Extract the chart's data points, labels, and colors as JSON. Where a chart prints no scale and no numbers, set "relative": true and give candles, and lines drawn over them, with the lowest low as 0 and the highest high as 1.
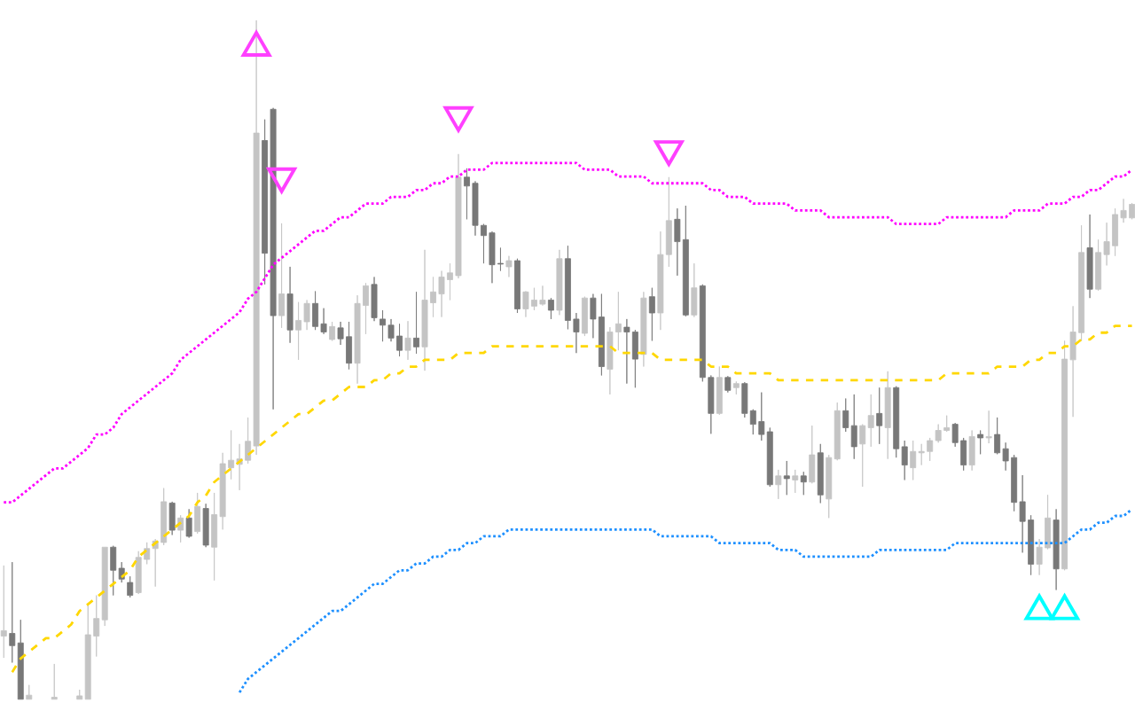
{
  "chart_data": {
    "type": "candlestick",
    "relative": true,
    "categories": [
      null,
      null,
      null,
      null,
      null,
      null,
      null,
      null,
      null,
      null,
      null,
      null,
      null,
      null,
      null,
      null,
      null,
      null,
      null,
      null,
      null,
      null,
      null,
      null,
      null,
      null,
      null,
      null,
      null,
      null,
      null,
      null,
      null,
      null,
      null,
      null,
      null,
      null,
      null,
      null,
      null,
      null,
      null,
      null,
      null,
      null,
      null,
      null,
      null,
      null,
      null,
      null,
      null,
      null,
      null,
      null,
      null,
      null,
      null,
      null,
      null,
      null,
      null,
      null,
      null,
      null,
      null,
      null,
      null,
      null,
      null,
      null,
      null,
      null,
      null,
      null,
      null,
      null,
      null,
      null,
      null,
      null,
      null,
      null,
      null,
      null,
      null,
      null,
      null,
      null,
      null,
      null,
      null,
      null,
      null,
      null,
      null,
      null,
      null,
      null,
      null,
      null,
      null,
      null,
      null,
      null,
      null,
      null,
      null,
      null,
      null,
      null,
      null,
      null,
      null,
      null,
      null,
      null,
      null,
      null,
      null,
      null,
      null,
      null,
      null,
      null,
      null,
      null,
      null,
      null,
      null,
      null,
      null,
      null,
      null
    ],
    "ohlc": [
      [
        0.093,
        0.197,
        0.061,
        0.101
      ],
      [
        0.097,
        0.202,
        0.054,
        0.079
      ],
      [
        0.083,
        0.117,
        0,
        0
      ],
      [
        0,
        0.021,
        0,
        0.006
      ],
      null,
      null,
      [
        0,
        0.052,
        0,
        0.003
      ],
      null,
      null,
      [
        0,
        0.014,
        0,
        0.005
      ],
      [
        0,
        0.141,
        0,
        0.095
      ],
      [
        0.093,
        0.153,
        0.063,
        0.119
      ],
      [
        0.117,
        0.224,
        0.108,
        0.224
      ],
      [
        0.224,
        0.226,
        0.153,
        0.19
      ],
      [
        0.193,
        0.202,
        0.172,
        0.177
      ],
      [
        0.172,
        0.181,
        0.15,
        0.153
      ],
      [
        0.157,
        0.218,
        0.155,
        0.209
      ],
      [
        0.206,
        0.231,
        0.199,
        0.222
      ],
      [
        0.222,
        0.236,
        0.166,
        0.233
      ],
      [
        0.231,
        0.311,
        0.227,
        0.291
      ],
      [
        0.289,
        0.291,
        0.242,
        0.249
      ],
      [
        0.249,
        0.271,
        0.231,
        0.267
      ],
      [
        0.267,
        0.28,
        0.238,
        0.24
      ],
      [
        0.247,
        0.304,
        0.244,
        0.284
      ],
      [
        0.281,
        0.288,
        0.224,
        0.227
      ],
      [
        0.224,
        0.304,
        0.175,
        0.272
      ],
      [
        0.269,
        0.363,
        0.25,
        0.347
      ],
      [
        0.341,
        0.396,
        0.324,
        0.352
      ],
      [
        0.346,
        0.376,
        0.308,
        0.354
      ],
      [
        0.352,
        0.415,
        0.347,
        0.38
      ],
      [
        0.373,
        1,
        0.36,
        0.834
      ],
      [
        0.823,
        0.854,
        0.611,
        0.657
      ],
      [
        0.869,
        0.871,
        0.427,
        0.565
      ],
      [
        0.565,
        0.701,
        0.547,
        0.597
      ],
      [
        0.597,
        0.637,
        0.525,
        0.544
      ],
      [
        0.544,
        0.585,
        0.5,
        0.558
      ],
      [
        0.556,
        0.588,
        0.544,
        0.583
      ],
      [
        0.583,
        0.601,
        0.544,
        0.549
      ],
      [
        0.553,
        0.576,
        0.538,
        0.541
      ],
      [
        0.53,
        0.556,
        0.528,
        0.549
      ],
      [
        0.547,
        0.556,
        0.522,
        0.531
      ],
      [
        0.534,
        0.556,
        0.486,
        0.495
      ],
      [
        0.495,
        0.595,
        0.465,
        0.583
      ],
      [
        0.58,
        0.613,
        0.538,
        0.609
      ],
      [
        0.611,
        0.622,
        0.557,
        0.562
      ],
      [
        0.56,
        0.573,
        0.527,
        0.551
      ],
      [
        0.551,
        0.56,
        0.527,
        0.532
      ],
      [
        0.535,
        0.553,
        0.505,
        0.514
      ],
      [
        0.514,
        0.557,
        0.5,
        0.532
      ],
      [
        0.532,
        0.6,
        0.509,
        0.519
      ],
      [
        0.519,
        0.662,
        0.484,
        0.588
      ],
      [
        0.584,
        0.622,
        0.563,
        0.6
      ],
      [
        0.597,
        0.631,
        0.563,
        0.622
      ],
      [
        0.618,
        0.642,
        0.588,
        0.628
      ],
      [
        0.624,
        0.803,
        0.62,
        0.769
      ],
      [
        0.769,
        0.782,
        0.707,
        0.756
      ],
      [
        0.76,
        0.763,
        0.683,
        0.698
      ],
      [
        0.698,
        0.7,
        0.642,
        0.683
      ],
      [
        0.687,
        0.689,
        0.613,
        0.64
      ],
      [
        0.642,
        0.665,
        0.631,
        0.641
      ],
      [
        0.637,
        0.653,
        0.622,
        0.646
      ],
      [
        0.646,
        0.649,
        0.569,
        0.575
      ],
      [
        0.575,
        0.601,
        0.563,
        0.6
      ],
      [
        0.579,
        0.606,
        0.573,
        0.588
      ],
      [
        0.582,
        0.609,
        0.58,
        0.588
      ],
      [
        0.588,
        0.591,
        0.56,
        0.573
      ],
      [
        0.573,
        0.662,
        0.566,
        0.649
      ],
      [
        0.649,
        0.668,
        0.545,
        0.558
      ],
      [
        0.56,
        0.569,
        0.51,
        0.541
      ],
      [
        0.539,
        0.593,
        0.535,
        0.591
      ],
      [
        0.591,
        0.597,
        0.532,
        0.56
      ],
      [
        0.563,
        0.597,
        0.477,
        0.49
      ],
      [
        0.486,
        0.548,
        0.449,
        0.541
      ],
      [
        0.541,
        0.6,
        0.514,
        0.553
      ],
      [
        0.548,
        0.56,
        0.465,
        0.541
      ],
      [
        0.541,
        0.544,
        0.459,
        0.501
      ],
      [
        0.508,
        0.6,
        0.49,
        0.591
      ],
      [
        0.593,
        0.606,
        0.528,
        0.569
      ],
      [
        0.569,
        0.689,
        0.544,
        0.655
      ],
      [
        0.655,
        0.769,
        0.637,
        0.705
      ],
      [
        0.707,
        0.723,
        0.624,
        0.674
      ],
      [
        0.677,
        0.727,
        0.564,
        0.566
      ],
      [
        0.566,
        0.642,
        0.563,
        0.606
      ],
      [
        0.609,
        0.611,
        0.468,
        0.474
      ],
      [
        0.474,
        0.477,
        0.391,
        0.421
      ],
      [
        0.421,
        0.49,
        0.419,
        0.474
      ],
      [
        0.474,
        0.476,
        0.452,
        0.455
      ],
      [
        0.459,
        0.468,
        0.449,
        0.465
      ],
      [
        0.465,
        0.467,
        0.415,
        0.421
      ],
      [
        0.425,
        0.427,
        0.39,
        0.405
      ],
      [
        0.409,
        0.452,
        0.381,
        0.39
      ],
      [
        0.394,
        0.4,
        0.313,
        0.316
      ],
      [
        0.316,
        0.338,
        0.295,
        0.329
      ],
      [
        0.329,
        0.351,
        0.301,
        0.325
      ],
      [
        0.323,
        0.338,
        0.304,
        0.329
      ],
      [
        0.329,
        0.335,
        0.301,
        0.32
      ],
      [
        0.32,
        0.403,
        0.318,
        0.36
      ],
      [
        0.363,
        0.376,
        0.289,
        0.301
      ],
      [
        0.295,
        0.36,
        0.267,
        0.356
      ],
      [
        0.354,
        0.437,
        0.352,
        0.425
      ],
      [
        0.425,
        0.443,
        0.394,
        0.4
      ],
      [
        0.403,
        0.449,
        0.354,
        0.372
      ],
      [
        0.376,
        0.405,
        0.313,
        0.403
      ],
      [
        0.4,
        0.449,
        0.372,
        0.418
      ],
      [
        0.421,
        0.459,
        0.376,
        0.403
      ],
      [
        0.4,
        0.483,
        0.354,
        0.459
      ],
      [
        0.459,
        0.461,
        0.356,
        0.369
      ],
      [
        0.372,
        0.381,
        0.323,
        0.345
      ],
      [
        0.341,
        0.381,
        0.323,
        0.365
      ],
      [
        0.363,
        0.376,
        0.345,
        0.365
      ],
      [
        0.365,
        0.385,
        0.351,
        0.381
      ],
      [
        0.381,
        0.405,
        0.378,
        0.396
      ],
      [
        0.396,
        0.418,
        0.394,
        0.4
      ],
      [
        0.405,
        0.407,
        0.372,
        0.378
      ],
      [
        0.381,
        0.385,
        0.337,
        0.345
      ],
      [
        0.345,
        0.396,
        0.337,
        0.387
      ],
      [
        0.39,
        0.396,
        0.361,
        0.385
      ],
      [
        0.385,
        0.425,
        0.377,
        0.387
      ],
      [
        0.39,
        0.415,
        0.361,
        0.363
      ],
      [
        0.369,
        0.378,
        0.337,
        0.351
      ],
      [
        0.356,
        0.36,
        0.277,
        0.29
      ],
      [
        0.291,
        0.33,
        0.216,
        0.262
      ],
      [
        0.264,
        0.271,
        0.183,
        0.199
      ],
      [
        0.199,
        0.236,
        0.183,
        0.224
      ],
      [
        0.223,
        0.301,
        0.221,
        0.267
      ],
      [
        0.264,
        0.28,
        0.161,
        0.192
      ],
      [
        0.192,
        0.528,
        0.19,
        0.501
      ],
      [
        0.5,
        0.579,
        0.416,
        0.541
      ],
      [
        0.54,
        0.698,
        0.528,
        0.658
      ],
      [
        0.665,
        0.714,
        0.591,
        0.604
      ],
      [
        0.604,
        0.677,
        0.602,
        0.658
      ],
      [
        0.655,
        0.702,
        0.639,
        0.674
      ],
      [
        0.668,
        0.723,
        0.653,
        0.714
      ],
      [
        0.709,
        0.737,
        0.702,
        0.72
      ],
      [
        0.709,
        0.731,
        0.707,
        0.729
      ]
    ],
    "colors": [
      "#c4c4c4",
      "#787878",
      "#787878",
      "#c4c4c4",
      null,
      null,
      "#c4c4c4",
      null,
      null,
      "#c4c4c4",
      "#c4c4c4",
      "#c4c4c4",
      "#c4c4c4",
      "#787878",
      "#787878",
      "#787878",
      "#c4c4c4",
      "#c4c4c4",
      "#c4c4c4",
      "#c4c4c4",
      "#787878",
      "#c4c4c4",
      "#787878",
      "#c4c4c4",
      "#787878",
      "#c4c4c4",
      "#c4c4c4",
      "#c4c4c4",
      "#c4c4c4",
      "#c4c4c4",
      "#c4c4c4",
      "#787878",
      "#787878",
      "#c4c4c4",
      "#787878",
      "#c4c4c4",
      "#c4c4c4",
      "#787878",
      "#787878",
      "#c4c4c4",
      "#787878",
      "#787878",
      "#c4c4c4",
      "#c4c4c4",
      "#787878",
      "#787878",
      "#787878",
      "#787878",
      "#c4c4c4",
      "#787878",
      "#c4c4c4",
      "#c4c4c4",
      "#c4c4c4",
      "#c4c4c4",
      "#c4c4c4",
      "#787878",
      "#787878",
      "#787878",
      "#787878",
      "#787878",
      "#c4c4c4",
      "#787878",
      "#c4c4c4",
      "#c4c4c4",
      "#c4c4c4",
      "#787878",
      "#c4c4c4",
      "#787878",
      "#787878",
      "#c4c4c4",
      "#787878",
      "#787878",
      "#c4c4c4",
      "#c4c4c4",
      "#787878",
      "#787878",
      "#c4c4c4",
      "#787878",
      "#c4c4c4",
      "#c4c4c4",
      "#787878",
      "#787878",
      "#c4c4c4",
      "#787878",
      "#787878",
      "#c4c4c4",
      "#787878",
      "#c4c4c4",
      "#787878",
      "#787878",
      "#787878",
      "#787878",
      "#c4c4c4",
      "#787878",
      "#c4c4c4",
      "#787878",
      "#c4c4c4",
      "#787878",
      "#c4c4c4",
      "#c4c4c4",
      "#787878",
      "#787878",
      "#c4c4c4",
      "#c4c4c4",
      "#787878",
      "#c4c4c4",
      "#787878",
      "#787878",
      "#c4c4c4",
      "#c4c4c4",
      "#c4c4c4",
      "#c4c4c4",
      "#c4c4c4",
      "#787878",
      "#787878",
      "#c4c4c4",
      "#787878",
      "#c4c4c4",
      "#787878",
      "#787878",
      "#787878",
      "#787878",
      "#787878",
      "#c4c4c4",
      "#c4c4c4",
      "#787878",
      "#c4c4c4",
      "#c4c4c4",
      "#c4c4c4",
      "#787878",
      "#c4c4c4",
      "#c4c4c4",
      "#c4c4c4",
      "#c4c4c4",
      "#c4c4c4"
    ],
    "series": [
      {
        "type": "line",
        "color": "#ff00ff",
        "line_style": "dotted",
        "values": [
          0.29,
          0.29,
          0.3,
          0.31,
          0.32,
          0.33,
          0.34,
          0.34,
          0.35,
          0.36,
          0.37,
          0.39,
          0.39,
          0.4,
          0.42,
          0.43,
          0.44,
          0.45,
          0.46,
          0.47,
          0.48,
          0.5,
          0.51,
          0.52,
          0.53,
          0.54,
          0.55,
          0.56,
          0.57,
          0.59,
          0.6,
          0.62,
          0.64,
          0.65,
          0.66,
          0.67,
          0.68,
          0.69,
          0.69,
          0.7,
          0.71,
          0.71,
          0.72,
          0.73,
          0.73,
          0.73,
          0.74,
          0.74,
          0.74,
          0.75,
          0.75,
          0.76,
          0.76,
          0.77,
          0.77,
          0.78,
          0.78,
          0.78,
          0.79,
          0.79,
          0.79,
          0.79,
          0.79,
          0.79,
          0.79,
          0.79,
          0.79,
          0.79,
          0.79,
          0.78,
          0.78,
          0.78,
          0.78,
          0.77,
          0.77,
          0.77,
          0.77,
          0.76,
          0.76,
          0.76,
          0.76,
          0.76,
          0.76,
          0.76,
          0.75,
          0.75,
          0.74,
          0.74,
          0.74,
          0.73,
          0.73,
          0.73,
          0.73,
          0.73,
          0.72,
          0.72,
          0.72,
          0.72,
          0.71,
          0.71,
          0.71,
          0.71,
          0.71,
          0.71,
          0.71,
          0.71,
          0.7,
          0.7,
          0.7,
          0.7,
          0.7,
          0.7,
          0.71,
          0.71,
          0.71,
          0.71,
          0.71,
          0.71,
          0.71,
          0.71,
          0.72,
          0.72,
          0.72,
          0.72,
          0.73,
          0.73,
          0.73,
          0.74,
          0.74,
          0.75,
          0.75,
          0.76,
          0.77,
          0.77,
          0.78
        ]
      },
      {
        "type": "line",
        "color": "#ffd700",
        "line_style": "dashed",
        "values": [
          null,
          0.04,
          0.06,
          0.07,
          0.08,
          0.09,
          0.09,
          0.1,
          0.11,
          0.13,
          0.14,
          0.15,
          0.16,
          0.17,
          0.18,
          0.19,
          0.21,
          0.22,
          0.23,
          0.24,
          0.25,
          0.26,
          0.27,
          0.29,
          0.3,
          0.32,
          0.33,
          0.34,
          0.35,
          0.36,
          0.37,
          0.38,
          0.39,
          0.4,
          0.41,
          0.42,
          0.42,
          0.43,
          0.44,
          0.44,
          0.45,
          0.46,
          0.46,
          0.46,
          0.47,
          0.47,
          0.48,
          0.48,
          0.49,
          0.49,
          0.5,
          0.5,
          0.5,
          0.5,
          0.51,
          0.51,
          0.51,
          0.51,
          0.52,
          0.52,
          0.52,
          0.52,
          0.52,
          0.52,
          0.52,
          0.52,
          0.52,
          0.52,
          0.52,
          0.52,
          0.52,
          0.52,
          0.52,
          0.51,
          0.51,
          0.51,
          0.51,
          0.51,
          0.5,
          0.5,
          0.5,
          0.5,
          0.5,
          0.5,
          0.49,
          0.49,
          0.49,
          0.48,
          0.48,
          0.48,
          0.48,
          0.48,
          0.47,
          0.47,
          0.47,
          0.47,
          0.47,
          0.47,
          0.47,
          0.47,
          0.47,
          0.47,
          0.47,
          0.47,
          0.47,
          0.47,
          0.47,
          0.47,
          0.47,
          0.47,
          0.47,
          0.47,
          0.48,
          0.48,
          0.48,
          0.48,
          0.48,
          0.48,
          0.49,
          0.49,
          0.49,
          0.49,
          0.5,
          0.5,
          0.51,
          0.51,
          0.52,
          0.52,
          0.53,
          0.53,
          0.54,
          0.54,
          0.55,
          0.55,
          0.55
        ]
      },
      {
        "type": "line",
        "color": "#1e90ff",
        "line_style": "dotted",
        "values": [
          null,
          null,
          null,
          null,
          null,
          null,
          null,
          null,
          null,
          null,
          null,
          null,
          null,
          null,
          null,
          null,
          null,
          null,
          null,
          null,
          null,
          null,
          null,
          null,
          null,
          null,
          null,
          null,
          0.01,
          0.03,
          0.04,
          0.05,
          0.06,
          0.07,
          0.08,
          0.09,
          0.1,
          0.11,
          0.12,
          0.13,
          0.13,
          0.14,
          0.15,
          0.16,
          0.17,
          0.17,
          0.18,
          0.19,
          0.19,
          0.2,
          0.2,
          0.21,
          0.21,
          0.22,
          0.22,
          0.23,
          0.23,
          0.24,
          0.24,
          0.24,
          0.25,
          0.25,
          0.25,
          0.25,
          0.25,
          0.25,
          0.25,
          0.25,
          0.25,
          0.25,
          0.25,
          0.25,
          0.25,
          0.25,
          0.25,
          0.25,
          0.25,
          0.25,
          0.24,
          0.24,
          0.24,
          0.24,
          0.24,
          0.24,
          0.24,
          0.23,
          0.23,
          0.23,
          0.23,
          0.23,
          0.23,
          0.23,
          0.22,
          0.22,
          0.22,
          0.21,
          0.21,
          0.21,
          0.21,
          0.21,
          0.21,
          0.21,
          0.21,
          0.21,
          0.22,
          0.22,
          0.22,
          0.22,
          0.22,
          0.22,
          0.22,
          0.22,
          0.22,
          0.23,
          0.23,
          0.23,
          0.23,
          0.23,
          0.23,
          0.23,
          0.23,
          0.23,
          0.23,
          0.23,
          0.23,
          0.23,
          0.23,
          0.24,
          0.25,
          0.25,
          0.26,
          0.26,
          0.27,
          0.27,
          0.28
        ]
      },
      {
        "type": "scatter",
        "color": "#ff40ff",
        "marker": "triangle",
        "values": [
          null,
          null,
          null,
          null,
          null,
          null,
          null,
          null,
          null,
          null,
          null,
          null,
          null,
          null,
          null,
          null,
          null,
          null,
          null,
          null,
          null,
          null,
          null,
          null,
          null,
          null,
          null,
          null,
          null,
          null,
          0.96,
          null,
          null,
          0.77,
          null,
          null,
          null,
          null,
          null,
          null,
          null,
          null,
          null,
          null,
          null,
          null,
          null,
          null,
          null,
          null,
          null,
          null,
          null,
          null,
          0.86,
          null,
          null,
          null,
          null,
          null,
          null,
          null,
          null,
          null,
          null,
          null,
          null,
          null,
          null,
          null,
          null,
          null,
          null,
          null,
          null,
          null,
          null,
          null,
          null,
          0.81,
          null,
          null,
          null,
          null,
          null,
          null,
          null,
          null,
          null,
          null,
          null,
          null,
          null,
          null,
          null,
          null,
          null,
          null,
          null,
          null,
          null,
          null,
          null,
          null,
          null,
          null,
          null,
          null,
          null,
          null,
          null,
          null,
          null,
          null,
          null,
          null,
          null,
          null,
          null,
          null,
          null,
          null,
          null,
          null,
          null,
          null,
          null,
          null,
          null,
          null,
          null,
          null,
          null,
          null,
          null
        ]
      },
      {
        "type": "scatter",
        "color": "#00ffff",
        "marker": "triangle",
        "values": [
          null,
          null,
          null,
          null,
          null,
          null,
          null,
          null,
          null,
          null,
          null,
          null,
          null,
          null,
          null,
          null,
          null,
          null,
          null,
          null,
          null,
          null,
          null,
          null,
          null,
          null,
          null,
          null,
          null,
          null,
          null,
          null,
          null,
          null,
          null,
          null,
          null,
          null,
          null,
          null,
          null,
          null,
          null,
          null,
          null,
          null,
          null,
          null,
          null,
          null,
          null,
          null,
          null,
          null,
          null,
          null,
          null,
          null,
          null,
          null,
          null,
          null,
          null,
          null,
          null,
          null,
          null,
          null,
          null,
          null,
          null,
          null,
          null,
          null,
          null,
          null,
          null,
          null,
          null,
          null,
          null,
          null,
          null,
          null,
          null,
          null,
          null,
          null,
          null,
          null,
          null,
          null,
          null,
          null,
          null,
          null,
          null,
          null,
          null,
          null,
          null,
          null,
          null,
          null,
          null,
          null,
          null,
          null,
          null,
          null,
          null,
          null,
          null,
          null,
          null,
          null,
          null,
          null,
          null,
          null,
          null,
          null,
          null,
          0.13,
          null,
          null,
          0.13,
          null,
          null,
          null,
          null,
          null,
          null,
          null,
          null
        ]
      }
    ]
  }
}
